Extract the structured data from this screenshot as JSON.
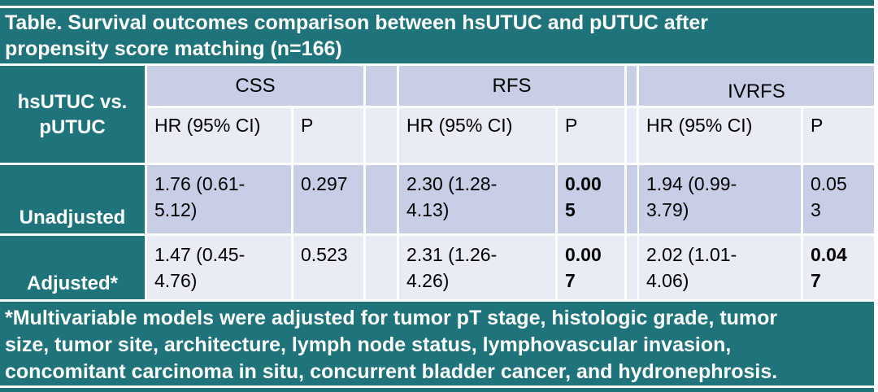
{
  "theme": {
    "teal": "#1F737B",
    "band_dark": "#C9CEE7",
    "band_light": "#E9EBF5",
    "header_text": "#FFFFFF",
    "body_text": "#000000"
  },
  "title": "Table. Survival outcomes comparison between hsUTUC and pUTUC after\npropensity score matching (n=166)",
  "table": {
    "row_header": "hsUTUC vs.\npUTUC",
    "groups": [
      {
        "label": "CSS"
      },
      {
        "label": "RFS"
      },
      {
        "label": "IVRFS"
      }
    ],
    "sub_headers": {
      "hr": "HR (95% CI)",
      "p": "P"
    },
    "rows": [
      {
        "label": "Unadjusted",
        "css": {
          "hr": "1.76 (0.61-\n5.12)",
          "p": "0.297",
          "p_bold": false
        },
        "rfs": {
          "hr": "2.30 (1.28-\n4.13)",
          "p": "0.00\n5",
          "p_bold": true
        },
        "ivrfs": {
          "hr": "1.94 (0.99-\n3.79)",
          "p": "0.05\n3",
          "p_bold": false
        }
      },
      {
        "label": "Adjusted*",
        "css": {
          "hr": "1.47 (0.45-\n4.76)",
          "p": "0.523",
          "p_bold": false
        },
        "rfs": {
          "hr": "2.31 (1.26-\n4.26)",
          "p": "0.00\n7",
          "p_bold": true
        },
        "ivrfs": {
          "hr": "2.02 (1.01-\n4.06)",
          "p": "0.04\n7",
          "p_bold": true
        }
      }
    ]
  },
  "footnote": " *Multivariable models were adjusted for tumor pT stage, histologic grade, tumor\nsize, tumor site, architecture, lymph node status, lymphovascular invasion,\nconcomitant carcinoma in situ, concurrent bladder cancer, and hydronephrosis."
}
